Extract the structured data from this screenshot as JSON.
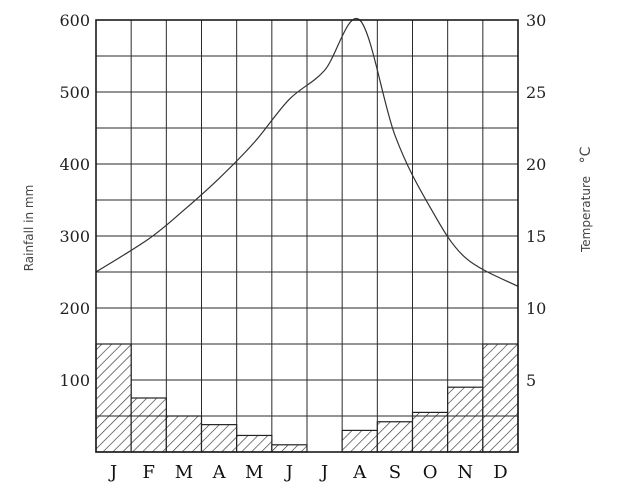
{
  "chart_data": {
    "type": "bar+line",
    "categories": [
      "J",
      "F",
      "M",
      "A",
      "M",
      "J",
      "J",
      "A",
      "S",
      "O",
      "N",
      "D"
    ],
    "rainfall": {
      "unit": "mm",
      "values": [
        150,
        75,
        50,
        38,
        23,
        10,
        0,
        30,
        42,
        55,
        90,
        150
      ],
      "hatch_split": 50
    },
    "temperature": {
      "unit": "°C",
      "values": [
        12.5,
        14.8,
        16.8,
        19.0,
        21.5,
        24.5,
        26.5,
        30.0,
        22.0,
        17.0,
        13.5,
        11.5
      ]
    },
    "ylabel_left": "Rainfall in mm",
    "ylabel_right": "Temperature",
    "ylabel_right_unit": "°C",
    "left_ticks": [
      100,
      200,
      300,
      400,
      500,
      600
    ],
    "right_ticks": [
      5,
      10,
      15,
      20,
      25,
      30
    ],
    "ylim_left": [
      0,
      600
    ],
    "ylim_right": [
      0,
      30
    ],
    "grid": true
  }
}
